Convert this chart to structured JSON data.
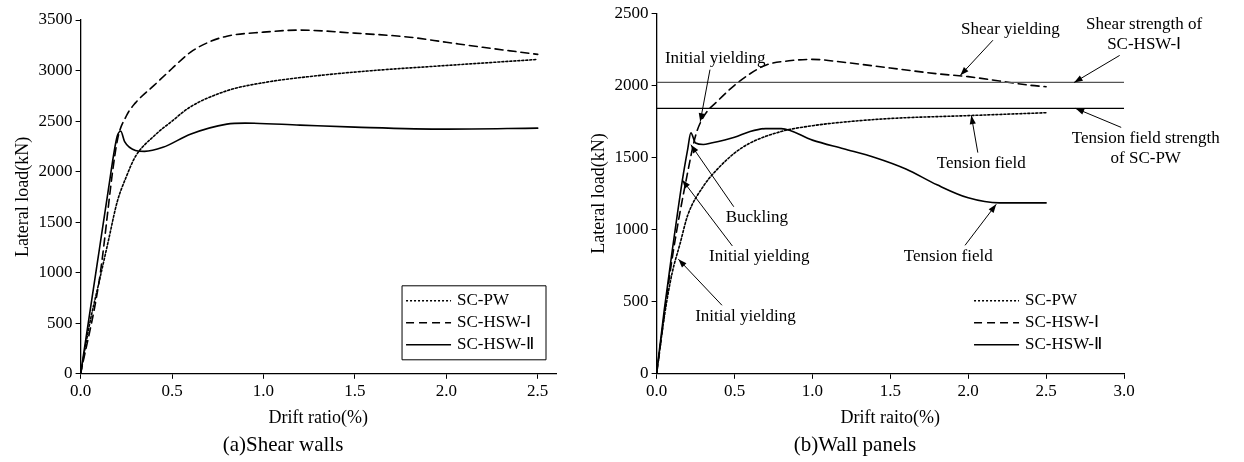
{
  "chart_data": [
    {
      "type": "line",
      "title": "(a)Shear walls",
      "xlabel": "Drift ratio(%)",
      "ylabel": "Lateral load(kN)",
      "xlim": [
        0,
        2.6
      ],
      "ylim": [
        0,
        3500
      ],
      "xticks": [
        {
          "value": 0,
          "label": "0.0"
        },
        {
          "value": 0.5,
          "label": "0.5"
        },
        {
          "value": 1,
          "label": "1.0"
        },
        {
          "value": 1.5,
          "label": "1.5"
        },
        {
          "value": 2,
          "label": "2.0"
        },
        {
          "value": 2.5,
          "label": "2.5"
        }
      ],
      "yticks": [
        0,
        500,
        1000,
        1500,
        2000,
        2500,
        3000,
        3500
      ],
      "grid": false,
      "legend": "bottom right",
      "marker": "none",
      "series": [
        {
          "name": "SC-PW",
          "color": "#000000",
          "line_style": "dotted",
          "x": [
            0,
            0.05,
            0.1,
            0.15,
            0.2,
            0.25,
            0.3,
            0.4,
            0.5,
            0.6,
            0.8,
            1.0,
            1.3,
            1.6,
            2.0,
            2.5
          ],
          "values": [
            0,
            500,
            900,
            1300,
            1700,
            1950,
            2150,
            2350,
            2500,
            2640,
            2800,
            2880,
            2950,
            3000,
            3050,
            3110
          ]
        },
        {
          "name": "SC-HSW-Ⅰ",
          "color": "#000000",
          "line_style": "dashed",
          "x": [
            0,
            0.1,
            0.2,
            0.25,
            0.3,
            0.4,
            0.5,
            0.6,
            0.7,
            0.8,
            1.0,
            1.2,
            1.5,
            1.8,
            2.0,
            2.2,
            2.5
          ],
          "values": [
            0,
            900,
            2300,
            2550,
            2680,
            2850,
            3020,
            3180,
            3280,
            3340,
            3380,
            3400,
            3370,
            3330,
            3280,
            3230,
            3160
          ]
        },
        {
          "name": "SC-HSW-Ⅱ",
          "color": "#000000",
          "line_style": "solid",
          "x": [
            0,
            0.05,
            0.1,
            0.15,
            0.2,
            0.22,
            0.24,
            0.3,
            0.35,
            0.45,
            0.6,
            0.8,
            0.9,
            1.2,
            1.5,
            2.0,
            2.5
          ],
          "values": [
            0,
            600,
            1200,
            1800,
            2350,
            2400,
            2300,
            2210,
            2200,
            2240,
            2370,
            2470,
            2480,
            2460,
            2440,
            2420,
            2430
          ]
        }
      ]
    },
    {
      "type": "line",
      "title": "(b)Wall panels",
      "xlabel": "Drift raito(%)",
      "ylabel": "Lateral load(kN)",
      "xlim": [
        0,
        3
      ],
      "ylim": [
        0,
        2500
      ],
      "xticks": [
        {
          "value": 0,
          "label": "0.0"
        },
        {
          "value": 0.5,
          "label": "0.5"
        },
        {
          "value": 1,
          "label": "1.0"
        },
        {
          "value": 1.5,
          "label": "1.5"
        },
        {
          "value": 2,
          "label": "2.0"
        },
        {
          "value": 2.5,
          "label": "2.5"
        },
        {
          "value": 3,
          "label": "3.0"
        }
      ],
      "yticks": [
        0,
        500,
        1000,
        1500,
        2000,
        2500
      ],
      "grid": false,
      "legend": "bottom right",
      "marker": "none",
      "ref_lines": [
        {
          "axis": "y",
          "value": 2020,
          "color": "#555555"
        },
        {
          "axis": "y",
          "value": 1840,
          "color": "#000000"
        }
      ],
      "series": [
        {
          "name": "SC-PW",
          "color": "#000000",
          "line_style": "dotted",
          "x": [
            0,
            0.05,
            0.1,
            0.15,
            0.2,
            0.3,
            0.4,
            0.5,
            0.6,
            0.8,
            1.0,
            1.2,
            1.5,
            2.0,
            2.5
          ],
          "values": [
            0,
            400,
            700,
            900,
            1100,
            1300,
            1430,
            1530,
            1600,
            1680,
            1720,
            1745,
            1770,
            1790,
            1810
          ]
        },
        {
          "name": "SC-HSW-Ⅰ",
          "color": "#000000",
          "line_style": "dashed",
          "x": [
            0,
            0.1,
            0.2,
            0.25,
            0.3,
            0.4,
            0.5,
            0.6,
            0.7,
            0.85,
            1.0,
            1.2,
            1.5,
            1.8,
            2.0,
            2.2,
            2.4,
            2.5
          ],
          "values": [
            0,
            800,
            1400,
            1650,
            1780,
            1900,
            2000,
            2080,
            2140,
            2170,
            2180,
            2160,
            2120,
            2080,
            2060,
            2030,
            2000,
            1990
          ]
        },
        {
          "name": "SC-HSW-Ⅱ",
          "color": "#000000",
          "line_style": "solid",
          "x": [
            0,
            0.05,
            0.1,
            0.165,
            0.2,
            0.22,
            0.25,
            0.3,
            0.35,
            0.5,
            0.6,
            0.7,
            0.8,
            1.0,
            1.2,
            1.4,
            1.6,
            1.8,
            2.0,
            2.2,
            2.5
          ],
          "values": [
            0,
            450,
            850,
            1340,
            1560,
            1670,
            1600,
            1590,
            1600,
            1640,
            1680,
            1700,
            1700,
            1620,
            1560,
            1500,
            1420,
            1310,
            1220,
            1185,
            1185
          ]
        }
      ],
      "annotations": [
        {
          "text": "Shear yielding",
          "x": 1.95,
          "y": 2070
        },
        {
          "text": "Shear strength of SC-HSW-Ⅰ",
          "x": 2.68,
          "y": 2020
        },
        {
          "text": "Tension field strength of SC-PW",
          "x": 2.69,
          "y": 1840
        },
        {
          "text": "Tension field",
          "x": 2.02,
          "y": 1790
        },
        {
          "text": "Tension field",
          "x": 2.18,
          "y": 1175
        },
        {
          "text": "Initial yielding",
          "x": 0.28,
          "y": 1748
        },
        {
          "text": "Buckling",
          "x": 0.22,
          "y": 1588
        },
        {
          "text": "Initial yielding",
          "x": 0.165,
          "y": 1344
        },
        {
          "text": "Initial yielding",
          "x": 0.14,
          "y": 794
        }
      ]
    }
  ]
}
